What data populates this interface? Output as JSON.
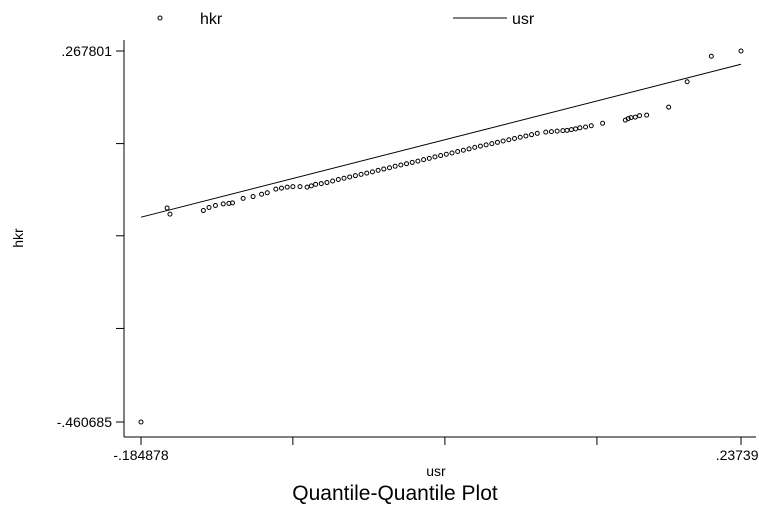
{
  "chart_data": {
    "type": "scatter",
    "title": "Quantile-Quantile Plot",
    "xlabel": "usr",
    "ylabel": "hkr",
    "xlim": [
      -0.184878,
      0.237396
    ],
    "ylim": [
      -0.460685,
      0.267801
    ],
    "x_tick_labels": [
      {
        "value": -0.184878,
        "label": "-.184878"
      },
      {
        "value": 0.237396,
        "label": ".237396"
      }
    ],
    "y_tick_labels": [
      {
        "value": 0.267801,
        "label": ".267801"
      },
      {
        "value": -0.460685,
        "label": "-.460685"
      }
    ],
    "x_minor_ticks": [
      -0.078,
      0.029,
      0.136
    ],
    "y_minor_ticks": [
      0.086,
      -0.095,
      -0.277
    ],
    "legend": {
      "position": "top",
      "items": [
        {
          "label": "hkr",
          "marker": "circle"
        },
        {
          "label": "usr",
          "marker": "line"
        }
      ]
    },
    "series": [
      {
        "name": "hkr",
        "style": "points",
        "points": [
          [
            -0.184878,
            -0.460685
          ],
          [
            -0.1665,
            -0.0405
          ],
          [
            -0.1645,
            -0.0525
          ],
          [
            -0.141,
            -0.0455
          ],
          [
            -0.137,
            -0.0395
          ],
          [
            -0.1325,
            -0.0355
          ],
          [
            -0.127,
            -0.0325
          ],
          [
            -0.123,
            -0.0315
          ],
          [
            -0.1205,
            -0.0305
          ],
          [
            -0.113,
            -0.0215
          ],
          [
            -0.106,
            -0.018
          ],
          [
            -0.1,
            -0.0135
          ],
          [
            -0.096,
            -0.0105
          ],
          [
            -0.09,
            -0.0035
          ],
          [
            -0.086,
            -0.0015
          ],
          [
            -0.082,
            0.0005
          ],
          [
            -0.078,
            0.0015
          ],
          [
            -0.073,
            0.0015
          ],
          [
            -0.068,
            0.0005
          ],
          [
            -0.065,
            0.003
          ],
          [
            -0.062,
            0.006
          ],
          [
            -0.058,
            0.0075
          ],
          [
            -0.054,
            0.0095
          ],
          [
            -0.05,
            0.0125
          ],
          [
            -0.046,
            0.0155
          ],
          [
            -0.042,
            0.018
          ],
          [
            -0.038,
            0.0205
          ],
          [
            -0.034,
            0.023
          ],
          [
            -0.03,
            0.0255
          ],
          [
            -0.026,
            0.028
          ],
          [
            -0.022,
            0.0305
          ],
          [
            -0.018,
            0.0335
          ],
          [
            -0.014,
            0.036
          ],
          [
            -0.01,
            0.0385
          ],
          [
            -0.006,
            0.0415
          ],
          [
            -0.002,
            0.044
          ],
          [
            0.002,
            0.0465
          ],
          [
            0.006,
            0.049
          ],
          [
            0.01,
            0.0515
          ],
          [
            0.014,
            0.0545
          ],
          [
            0.018,
            0.057
          ],
          [
            0.022,
            0.06
          ],
          [
            0.026,
            0.0625
          ],
          [
            0.03,
            0.065
          ],
          [
            0.034,
            0.0675
          ],
          [
            0.038,
            0.0705
          ],
          [
            0.042,
            0.073
          ],
          [
            0.046,
            0.0755
          ],
          [
            0.05,
            0.0785
          ],
          [
            0.054,
            0.081
          ],
          [
            0.058,
            0.0835
          ],
          [
            0.062,
            0.086
          ],
          [
            0.066,
            0.0885
          ],
          [
            0.07,
            0.091
          ],
          [
            0.074,
            0.0935
          ],
          [
            0.078,
            0.096
          ],
          [
            0.082,
            0.0985
          ],
          [
            0.086,
            0.101
          ],
          [
            0.09,
            0.1035
          ],
          [
            0.094,
            0.106
          ],
          [
            0.1,
            0.1085
          ],
          [
            0.104,
            0.1095
          ],
          [
            0.108,
            0.1105
          ],
          [
            0.112,
            0.1115
          ],
          [
            0.115,
            0.112
          ],
          [
            0.118,
            0.1135
          ],
          [
            0.121,
            0.115
          ],
          [
            0.124,
            0.117
          ],
          [
            0.128,
            0.1185
          ],
          [
            0.132,
            0.121
          ],
          [
            0.14,
            0.126
          ],
          [
            0.156,
            0.132
          ],
          [
            0.158,
            0.135
          ],
          [
            0.16,
            0.137
          ],
          [
            0.163,
            0.138
          ],
          [
            0.166,
            0.141
          ],
          [
            0.171,
            0.142
          ],
          [
            0.1865,
            0.1575
          ],
          [
            0.1995,
            0.2075
          ],
          [
            0.2165,
            0.2575
          ],
          [
            0.237396,
            0.267801
          ]
        ]
      },
      {
        "name": "usr",
        "style": "line",
        "points": [
          [
            -0.184878,
            -0.0585
          ],
          [
            0.237396,
            0.2418
          ]
        ]
      }
    ]
  }
}
